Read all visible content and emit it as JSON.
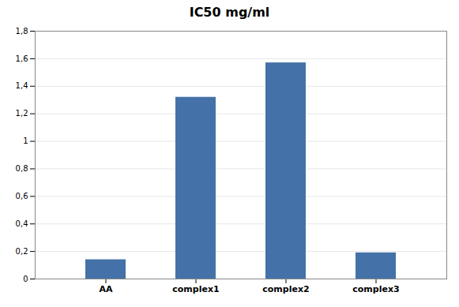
{
  "chart_data": {
    "type": "bar",
    "title": "IC50 mg/ml",
    "categories": [
      "AA",
      "complex1",
      "complex2",
      "complex3"
    ],
    "values": [
      0.14,
      1.32,
      1.57,
      0.19
    ],
    "color": "#4472a8",
    "ylim": [
      0,
      1.8
    ],
    "yticks": [
      0,
      {
        "value": 0.2,
        "label": "0,2"
      },
      {
        "value": 0.4,
        "label": "0,4"
      },
      {
        "value": 0.6,
        "label": "0,6"
      },
      {
        "value": 0.8,
        "label": "0,8"
      },
      1,
      {
        "value": 1.2,
        "label": "1,2"
      },
      {
        "value": 1.4,
        "label": "1,4"
      },
      {
        "value": 1.6,
        "label": "1,6"
      },
      {
        "value": 1.8,
        "label": "1,8"
      }
    ],
    "grid": true
  }
}
